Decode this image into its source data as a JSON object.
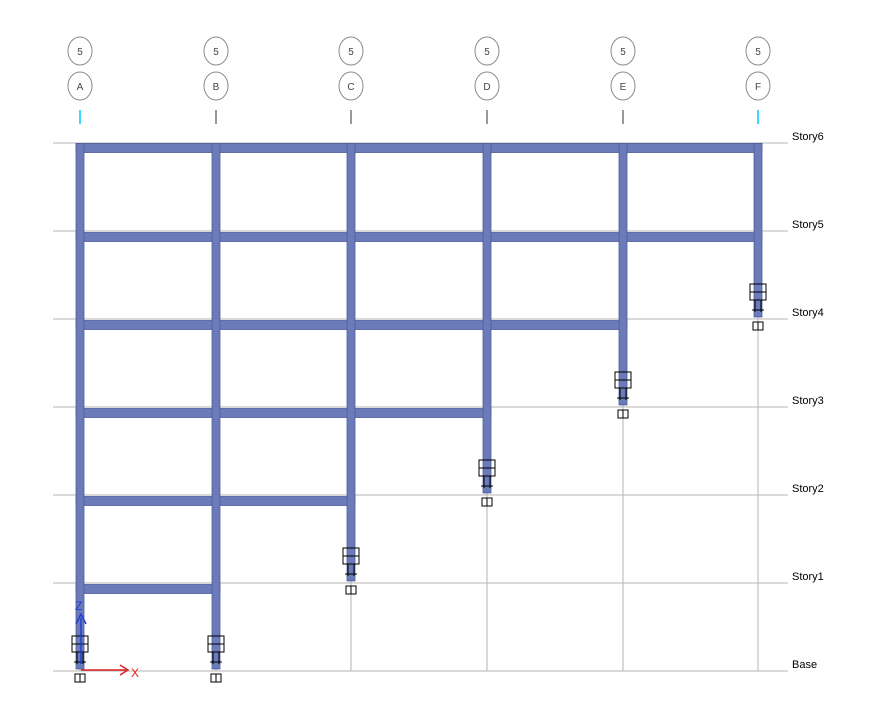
{
  "grid_lines": [
    {
      "bubble_top": "5",
      "bubble_bottom": "A",
      "leader_color": "#00c8ff"
    },
    {
      "bubble_top": "5",
      "bubble_bottom": "B",
      "leader_color": "#777777"
    },
    {
      "bubble_top": "5",
      "bubble_bottom": "C",
      "leader_color": "#777777"
    },
    {
      "bubble_top": "5",
      "bubble_bottom": "D",
      "leader_color": "#777777"
    },
    {
      "bubble_top": "5",
      "bubble_bottom": "E",
      "leader_color": "#777777"
    },
    {
      "bubble_top": "5",
      "bubble_bottom": "F",
      "leader_color": "#00c8ff"
    }
  ],
  "stories": [
    "Story6",
    "Story5",
    "Story4",
    "Story3",
    "Story2",
    "Story1",
    "Base"
  ],
  "frame": {
    "member_color": "#6b7ab8",
    "member_edge_color": "#4f5c9a",
    "support_color": "#000000",
    "gridline_color": "#b4b4b4",
    "column_bottom_level": [
      "Base",
      "Base",
      "Story1",
      "Story2",
      "Story3",
      "Story4"
    ],
    "beam_top_levels": {
      "Story6": [
        0,
        5
      ],
      "Story5": [
        0,
        5
      ],
      "Story4": [
        0,
        4
      ],
      "Story3": [
        0,
        3
      ],
      "Story2": [
        0,
        2
      ],
      "Story1": [
        0,
        1
      ]
    }
  },
  "axis_triad": {
    "z_label": "Z",
    "z_color": "#1f3fd0",
    "x_label": "X",
    "x_color": "#e01f1f"
  }
}
